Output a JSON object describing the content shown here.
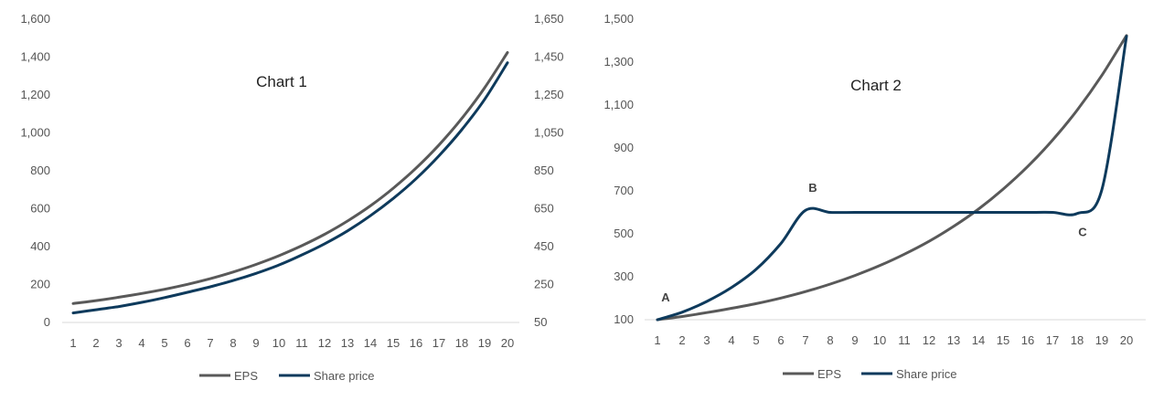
{
  "colors": {
    "eps": "#595959",
    "share_price": "#0e3a5c",
    "axis": "#d9d9d9"
  },
  "chart_data": [
    {
      "type": "line",
      "title": "Chart 1",
      "x": [
        1,
        2,
        3,
        4,
        5,
        6,
        7,
        8,
        9,
        10,
        11,
        12,
        13,
        14,
        15,
        16,
        17,
        18,
        19,
        20
      ],
      "y_left": {
        "range": [
          0,
          1600
        ],
        "ticks": [
          0,
          200,
          400,
          600,
          800,
          1000,
          1200,
          1400,
          1600
        ],
        "labels": [
          "0",
          "200",
          "400",
          "600",
          "800",
          "1,000",
          "1,200",
          "1,400",
          "1,600"
        ]
      },
      "y_right": {
        "range": [
          50,
          1650
        ],
        "ticks": [
          50,
          250,
          450,
          650,
          850,
          1050,
          1250,
          1450,
          1650
        ],
        "labels": [
          "50",
          "250",
          "450",
          "650",
          "850",
          "1,050",
          "1,250",
          "1,450",
          "1,650"
        ]
      },
      "legend_position": "bottom",
      "series": [
        {
          "name": "EPS",
          "axis": "left",
          "color_key": "eps",
          "values": [
            100,
            115,
            133,
            153,
            175,
            201,
            231,
            266,
            306,
            352,
            405,
            465,
            535,
            615,
            708,
            814,
            936,
            1076,
            1238,
            1424
          ]
        },
        {
          "name": "Share price",
          "axis": "right",
          "color_key": "share_price",
          "values": [
            100,
            117,
            134,
            156,
            181,
            209,
            238,
            271,
            309,
            353,
            406,
            465,
            533,
            613,
            704,
            808,
            929,
            1067,
            1227,
            1420
          ]
        }
      ]
    },
    {
      "type": "line",
      "title": "Chart 2",
      "x": [
        1,
        2,
        3,
        4,
        5,
        6,
        7,
        8,
        9,
        10,
        11,
        12,
        13,
        14,
        15,
        16,
        17,
        18,
        19,
        20
      ],
      "y": {
        "range": [
          100,
          1500
        ],
        "ticks": [
          100,
          300,
          500,
          700,
          900,
          1100,
          1300,
          1500
        ],
        "labels": [
          "100",
          "300",
          "500",
          "700",
          "900",
          "1,100",
          "1,300",
          "1,500"
        ]
      },
      "legend_position": "bottom",
      "annotations": [
        {
          "text": "A",
          "x": 1,
          "y": 100
        },
        {
          "text": "B",
          "x": 7,
          "y": 610
        },
        {
          "text": "C",
          "x": 18,
          "y": 595
        }
      ],
      "series": [
        {
          "name": "EPS",
          "color_key": "eps",
          "values": [
            100,
            115,
            133,
            153,
            175,
            201,
            231,
            266,
            306,
            352,
            405,
            465,
            535,
            615,
            708,
            814,
            936,
            1076,
            1238,
            1424
          ]
        },
        {
          "name": "Share price",
          "color_key": "share_price",
          "values": [
            100,
            135,
            185,
            250,
            335,
            455,
            610,
            600,
            600,
            600,
            600,
            600,
            600,
            600,
            600,
            600,
            600,
            595,
            705,
            1420
          ]
        }
      ]
    }
  ]
}
